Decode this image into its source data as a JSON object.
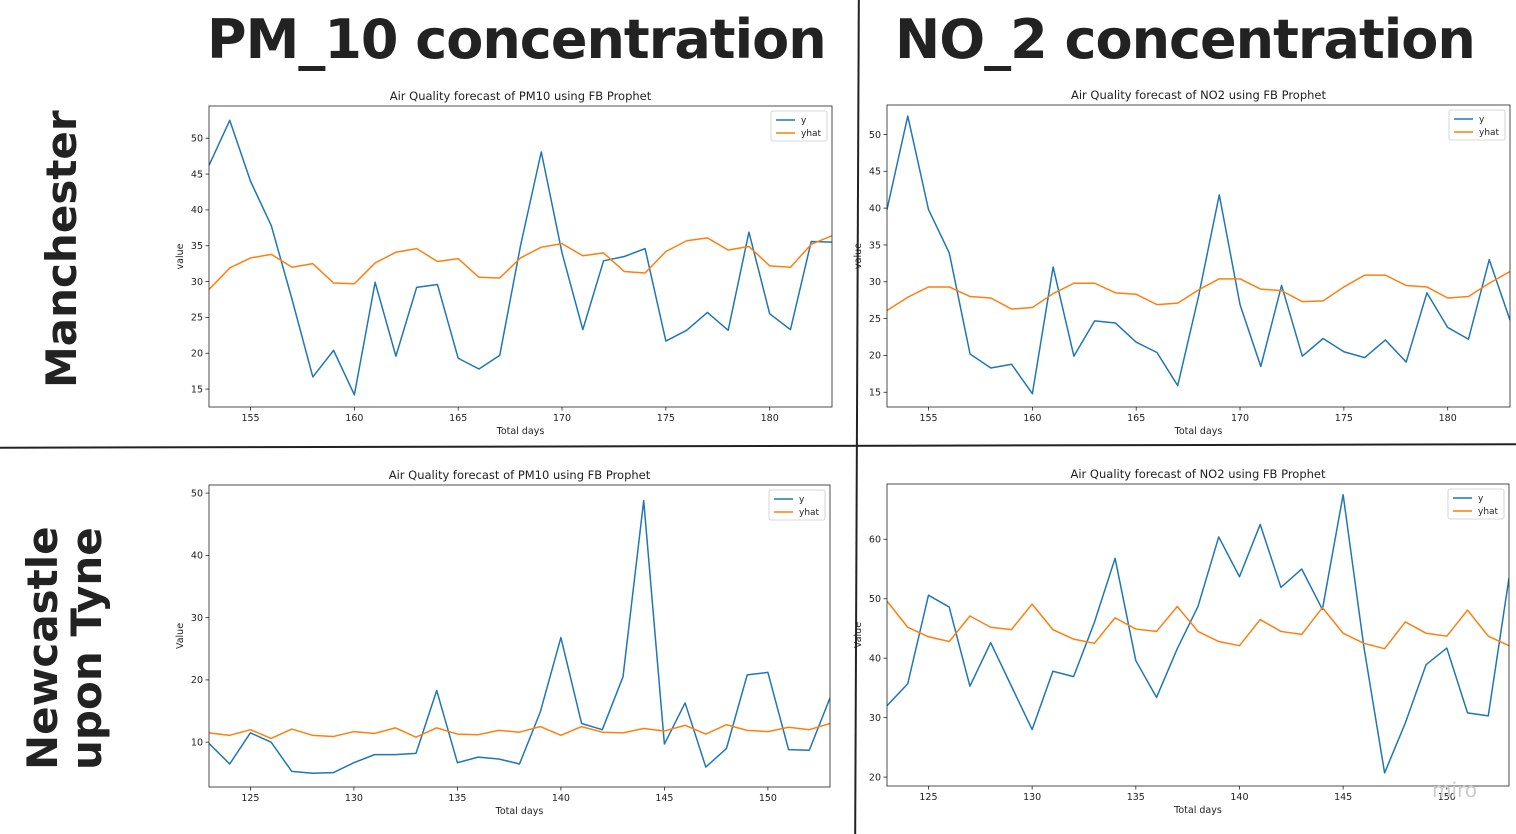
{
  "headers": {
    "col1": "PM_10 concentration",
    "col2": "NO_2 concentration"
  },
  "rows": {
    "row1": [
      "Manchester"
    ],
    "row2": [
      "Newcastle",
      "upon Tyne"
    ]
  },
  "watermark": "miro",
  "colors": {
    "y": "#1f77b4",
    "yhat": "#ff7f0e",
    "text": "#222222"
  },
  "chart_data": [
    {
      "type": "line",
      "title": "Air Quality forecast of PM10 using FB Prophet",
      "xlabel": "Total days",
      "ylabel": "value",
      "xlim": [
        153,
        183
      ],
      "ylim": [
        12.5,
        54.5
      ],
      "xticks": [
        155,
        160,
        165,
        170,
        175,
        180
      ],
      "yticks": [
        15,
        20,
        25,
        30,
        35,
        40,
        45,
        50
      ],
      "legend": "top-right",
      "x": [
        153,
        154,
        155,
        156,
        157,
        158,
        159,
        160,
        161,
        162,
        163,
        164,
        165,
        166,
        167,
        168,
        169,
        170,
        171,
        172,
        173,
        174,
        175,
        176,
        177,
        178,
        179,
        180,
        181,
        182,
        183
      ],
      "series": [
        {
          "name": "y",
          "values": [
            46.2,
            52.5,
            44.0,
            37.8,
            27.5,
            16.7,
            20.4,
            14.2,
            29.9,
            19.6,
            29.2,
            29.6,
            19.3,
            17.8,
            19.7,
            35.0,
            48.1,
            34.0,
            23.3,
            32.9,
            33.5,
            34.6,
            21.7,
            23.2,
            25.7,
            23.2,
            36.9,
            25.5,
            23.3,
            35.6,
            35.5
          ]
        },
        {
          "name": "yhat",
          "values": [
            28.9,
            31.9,
            33.3,
            33.8,
            32.0,
            32.5,
            29.8,
            29.7,
            32.6,
            34.1,
            34.6,
            32.8,
            33.2,
            30.6,
            30.5,
            33.3,
            34.8,
            35.3,
            33.6,
            34.0,
            31.4,
            31.2,
            34.2,
            35.7,
            36.1,
            34.4,
            34.9,
            32.2,
            32.0,
            35.2,
            36.4
          ]
        }
      ]
    },
    {
      "type": "line",
      "title": "Air Quality forecast of NO2 using FB Prophet",
      "xlabel": "Total days",
      "ylabel": "value",
      "xlim": [
        153,
        183
      ],
      "ylim": [
        13,
        54
      ],
      "xticks": [
        155,
        160,
        165,
        170,
        175,
        180
      ],
      "yticks": [
        15,
        20,
        25,
        30,
        35,
        40,
        45,
        50
      ],
      "legend": "top-right",
      "x": [
        153,
        154,
        155,
        156,
        157,
        158,
        159,
        160,
        161,
        162,
        163,
        164,
        165,
        166,
        167,
        168,
        169,
        170,
        171,
        172,
        173,
        174,
        175,
        176,
        177,
        178,
        179,
        180,
        181,
        182,
        183
      ],
      "series": [
        {
          "name": "y",
          "values": [
            39.8,
            52.5,
            39.8,
            33.9,
            20.2,
            18.3,
            18.8,
            14.8,
            32.0,
            19.9,
            24.7,
            24.4,
            21.8,
            20.4,
            15.9,
            28.0,
            41.8,
            26.9,
            18.5,
            29.5,
            19.9,
            22.3,
            20.5,
            19.7,
            22.1,
            19.1,
            28.5,
            23.8,
            22.2,
            33.0,
            24.8
          ]
        },
        {
          "name": "yhat",
          "values": [
            26.1,
            27.9,
            29.3,
            29.3,
            28.0,
            27.8,
            26.3,
            26.5,
            28.4,
            29.8,
            29.8,
            28.5,
            28.3,
            26.9,
            27.1,
            28.9,
            30.4,
            30.4,
            29.0,
            28.8,
            27.3,
            27.4,
            29.3,
            30.9,
            30.9,
            29.5,
            29.3,
            27.8,
            28.0,
            29.8,
            31.4
          ]
        }
      ]
    },
    {
      "type": "line",
      "title": "Air Quality forecast of PM10 using FB Prophet",
      "xlabel": "Total days",
      "ylabel": "Value",
      "xlim": [
        123,
        153
      ],
      "ylim": [
        2.8,
        51.3
      ],
      "xticks": [
        125,
        130,
        135,
        140,
        145,
        150
      ],
      "yticks": [
        10,
        20,
        30,
        40,
        50
      ],
      "legend": "top-right",
      "x": [
        123,
        124,
        125,
        126,
        127,
        128,
        129,
        130,
        131,
        132,
        133,
        134,
        135,
        136,
        137,
        138,
        139,
        140,
        141,
        142,
        143,
        144,
        145,
        146,
        147,
        148,
        149,
        150,
        151,
        152,
        153
      ],
      "series": [
        {
          "name": "y",
          "values": [
            9.8,
            6.5,
            11.5,
            10.0,
            5.3,
            5.0,
            5.1,
            6.7,
            8.0,
            8.0,
            8.2,
            18.3,
            6.7,
            7.6,
            7.3,
            6.5,
            14.8,
            26.8,
            13.0,
            12.0,
            20.5,
            48.8,
            9.7,
            16.3,
            6.0,
            9.0,
            20.8,
            21.2,
            8.8,
            8.7,
            17.1
          ]
        },
        {
          "name": "yhat",
          "values": [
            11.5,
            11.1,
            12.0,
            10.6,
            12.1,
            11.1,
            10.9,
            11.7,
            11.4,
            12.3,
            10.8,
            12.3,
            11.3,
            11.2,
            11.9,
            11.6,
            12.5,
            11.1,
            12.5,
            11.6,
            11.5,
            12.2,
            11.8,
            12.7,
            11.3,
            12.8,
            11.9,
            11.7,
            12.4,
            12.0,
            13.0
          ]
        }
      ]
    },
    {
      "type": "line",
      "title": "Air Quality forecast of NO2 using FB Prophet",
      "xlabel": "Total days",
      "ylabel": "Value",
      "xlim": [
        123,
        153
      ],
      "ylim": [
        18.5,
        69.3
      ],
      "xticks": [
        125,
        130,
        135,
        140,
        145,
        150
      ],
      "yticks": [
        20,
        30,
        40,
        50,
        60
      ],
      "legend": "top-right",
      "x": [
        123,
        124,
        125,
        126,
        127,
        128,
        129,
        130,
        131,
        132,
        133,
        134,
        135,
        136,
        137,
        138,
        139,
        140,
        141,
        142,
        143,
        144,
        145,
        146,
        147,
        148,
        149,
        150,
        151,
        152,
        153
      ],
      "series": [
        {
          "name": "y",
          "values": [
            32.0,
            35.7,
            50.6,
            48.6,
            35.3,
            42.6,
            35.3,
            28.0,
            37.8,
            36.9,
            46.0,
            56.8,
            39.6,
            33.4,
            41.6,
            48.7,
            60.4,
            53.7,
            62.5,
            51.9,
            55.0,
            48.2,
            67.5,
            41.9,
            20.7,
            29.1,
            38.9,
            41.7,
            30.8,
            30.3,
            53.5
          ]
        },
        {
          "name": "yhat",
          "values": [
            49.6,
            45.2,
            43.6,
            42.8,
            47.1,
            45.2,
            44.8,
            49.1,
            44.8,
            43.2,
            42.5,
            46.8,
            44.9,
            44.5,
            48.7,
            44.5,
            42.8,
            42.1,
            46.5,
            44.5,
            44.0,
            48.5,
            44.2,
            42.5,
            41.6,
            46.1,
            44.2,
            43.7,
            48.1,
            43.7,
            42.1
          ]
        }
      ]
    }
  ]
}
